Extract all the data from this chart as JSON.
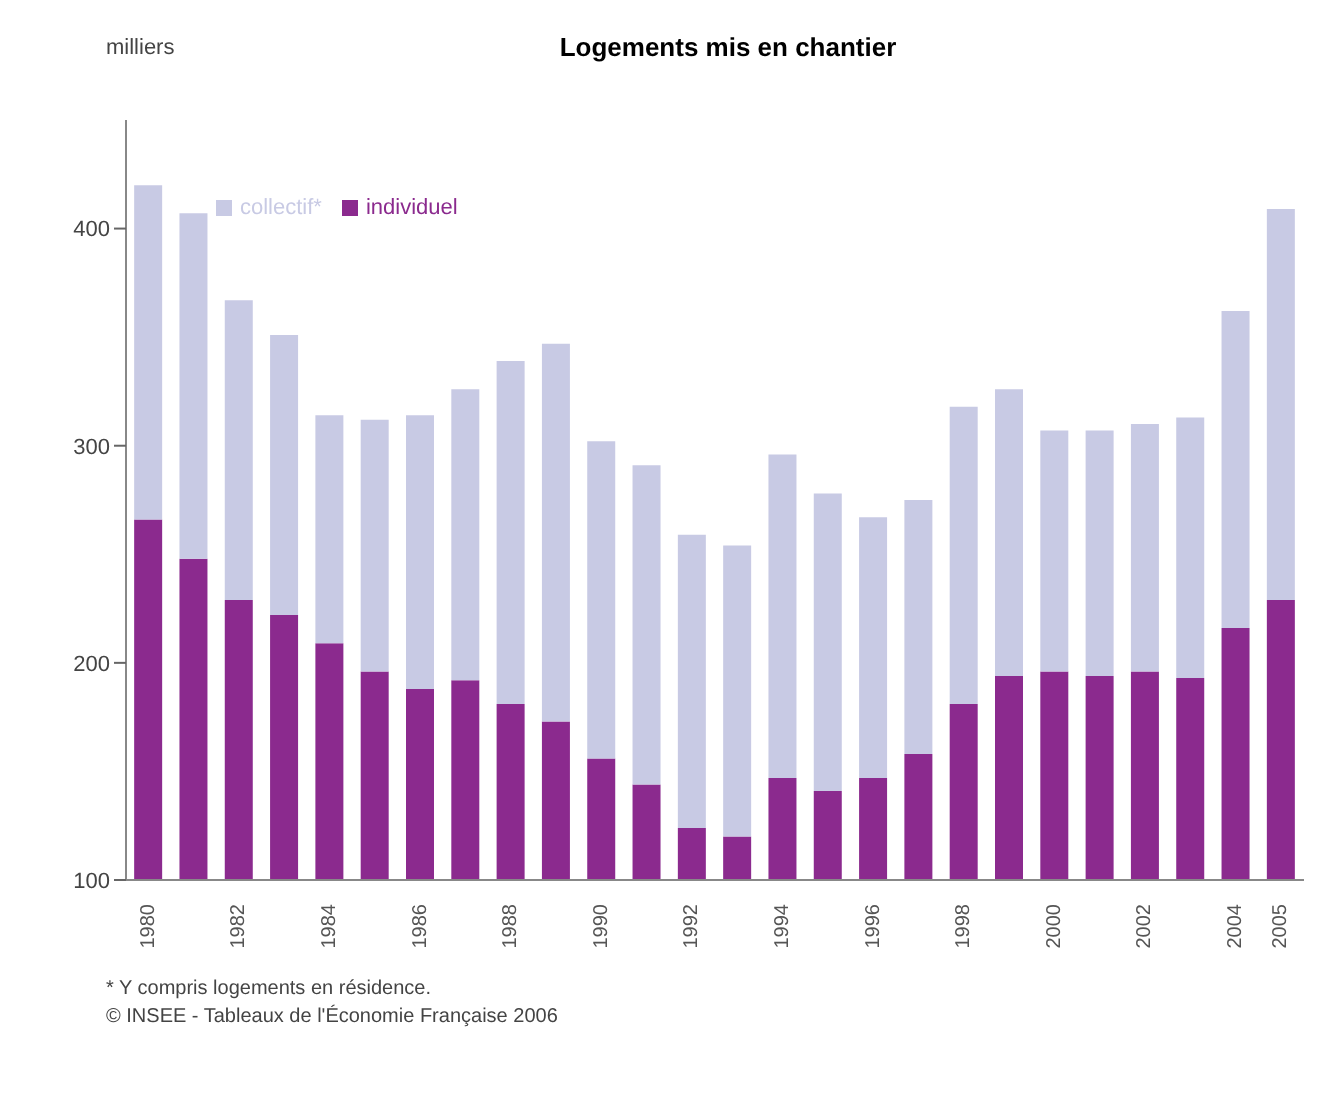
{
  "chart_data": {
    "type": "bar",
    "title": "Logements mis en chantier",
    "ylabel": "milliers",
    "categories": [
      "1980",
      null,
      "1982",
      null,
      "1984",
      null,
      "1986",
      null,
      "1988",
      null,
      "1990",
      null,
      "1992",
      null,
      "1994",
      null,
      "1996",
      null,
      "1998",
      null,
      "2000",
      null,
      "2002",
      null,
      "2004",
      "2005"
    ],
    "series": [
      {
        "name": "individuel",
        "color": "#8b2a8e",
        "values": [
          266,
          248,
          229,
          222,
          209,
          196,
          188,
          192,
          181,
          173,
          156,
          144,
          124,
          120,
          147,
          141,
          147,
          158,
          181,
          194,
          196,
          194,
          196,
          193,
          216,
          229
        ]
      },
      {
        "name": "collectif*",
        "color": "#c8cae4",
        "values": [
          154,
          159,
          138,
          129,
          105,
          116,
          126,
          134,
          158,
          174,
          146,
          147,
          135,
          134,
          149,
          137,
          120,
          117,
          137,
          132,
          111,
          113,
          114,
          120,
          146,
          180
        ]
      }
    ],
    "stacked": true,
    "ylim": [
      100,
      450
    ],
    "yticks": [
      100,
      200,
      300,
      400
    ],
    "grid": false,
    "legend": "top left",
    "annotations": [
      "* Y compris logements en résidence.",
      "© INSEE - Tableaux de l'Économie Française 2006"
    ]
  }
}
